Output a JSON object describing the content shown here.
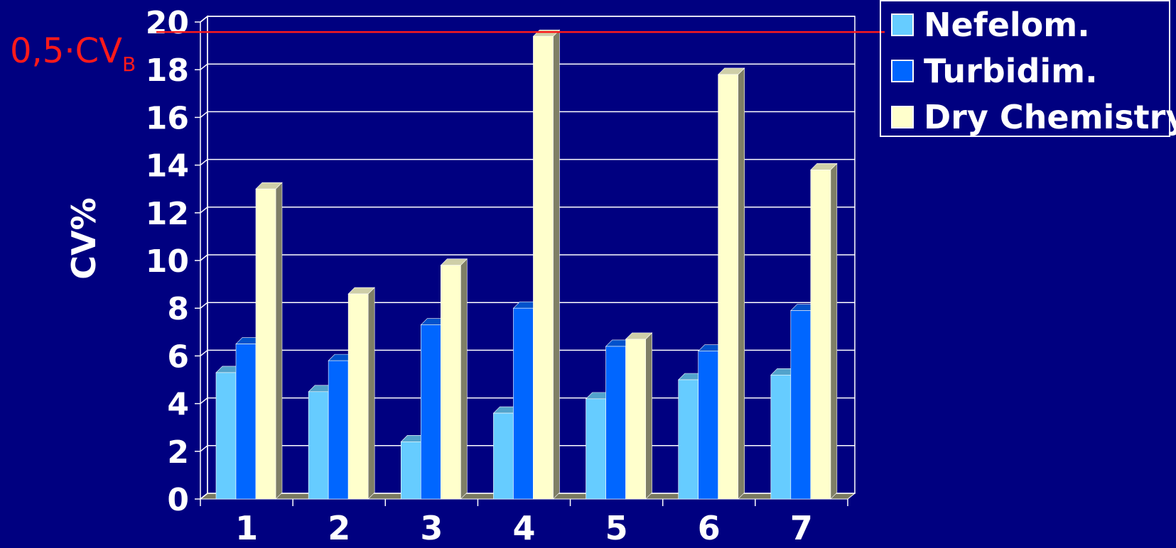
{
  "chart_data": {
    "type": "bar",
    "title": "",
    "xlabel": "",
    "ylabel": "CV%",
    "ylim": [
      0,
      20
    ],
    "yticks": [
      0,
      2,
      4,
      6,
      8,
      10,
      12,
      14,
      16,
      18,
      20
    ],
    "categories": [
      "1",
      "2",
      "3",
      "4",
      "5",
      "6",
      "7"
    ],
    "series": [
      {
        "name": "Nefelom.",
        "color": "#66ccff",
        "values": [
          5.3,
          4.5,
          2.4,
          3.6,
          4.2,
          5.0,
          5.2
        ]
      },
      {
        "name": "Turbidim.",
        "color": "#0066ff",
        "values": [
          6.5,
          5.8,
          7.3,
          8.0,
          6.4,
          6.2,
          7.9
        ]
      },
      {
        "name": "Dry Chemistry",
        "color": "#ffffcc",
        "values": [
          13.0,
          8.6,
          9.8,
          19.4,
          6.7,
          17.8,
          13.8
        ]
      }
    ],
    "reference_line": {
      "value": 19.4,
      "label_main": "0,5·CV",
      "label_sub": "B",
      "color": "#ff1a1a"
    },
    "grid": true,
    "legend": "top-right",
    "background": "#000080"
  }
}
